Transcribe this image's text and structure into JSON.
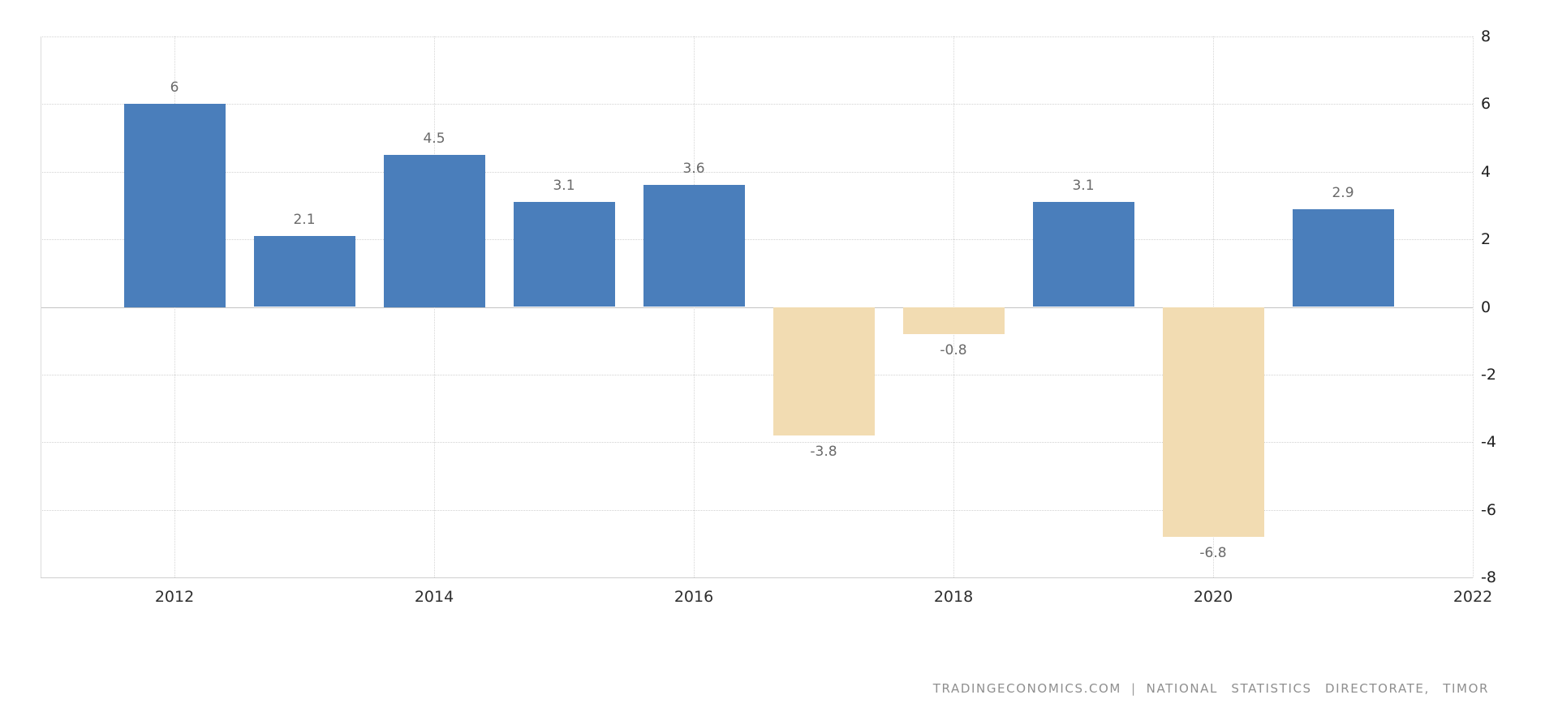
{
  "chart_data": {
    "type": "bar",
    "title": "",
    "xlabel": "",
    "ylabel": "",
    "categories": [
      "2012",
      "2013",
      "2014",
      "2015",
      "2016",
      "2017",
      "2018",
      "2019",
      "2020",
      "2021"
    ],
    "values": [
      6,
      2.1,
      4.5,
      3.1,
      3.6,
      -3.8,
      -0.8,
      3.1,
      -6.8,
      2.9
    ],
    "value_labels": [
      "6",
      "2.1",
      "4.5",
      "3.1",
      "3.6",
      "-3.8",
      "-0.8",
      "3.1",
      "-6.8",
      "2.9"
    ],
    "ylim": [
      -8,
      8
    ],
    "y_ticks": [
      8,
      6,
      4,
      2,
      0,
      -2,
      -4,
      -6,
      -8
    ],
    "y_tick_labels": [
      "8",
      "6",
      "4",
      "2",
      "0",
      "-2",
      "-4",
      "-6",
      "-8"
    ],
    "x_tick_labels": [
      "2012",
      "2014",
      "2016",
      "2018",
      "2020",
      "2022"
    ],
    "y_axis_side": "right",
    "grid": "dotted",
    "legend": "none",
    "colors": {
      "positive_bar": "#4A7EBB",
      "negative_bar": "#F2DCB2",
      "data_label": "#6a6a6a",
      "x_axis_label": "#2e2e2e",
      "y_axis_label": "#1f1f1f",
      "gridline": "#d2d2d2",
      "zero_line": "#c4c4c4",
      "background": "#ffffff"
    }
  },
  "attribution": {
    "source_left": "TRADINGECONOMICS.COM",
    "separator": "|",
    "source_right": "NATIONAL STATISTICS DIRECTORATE, TIMOR"
  }
}
